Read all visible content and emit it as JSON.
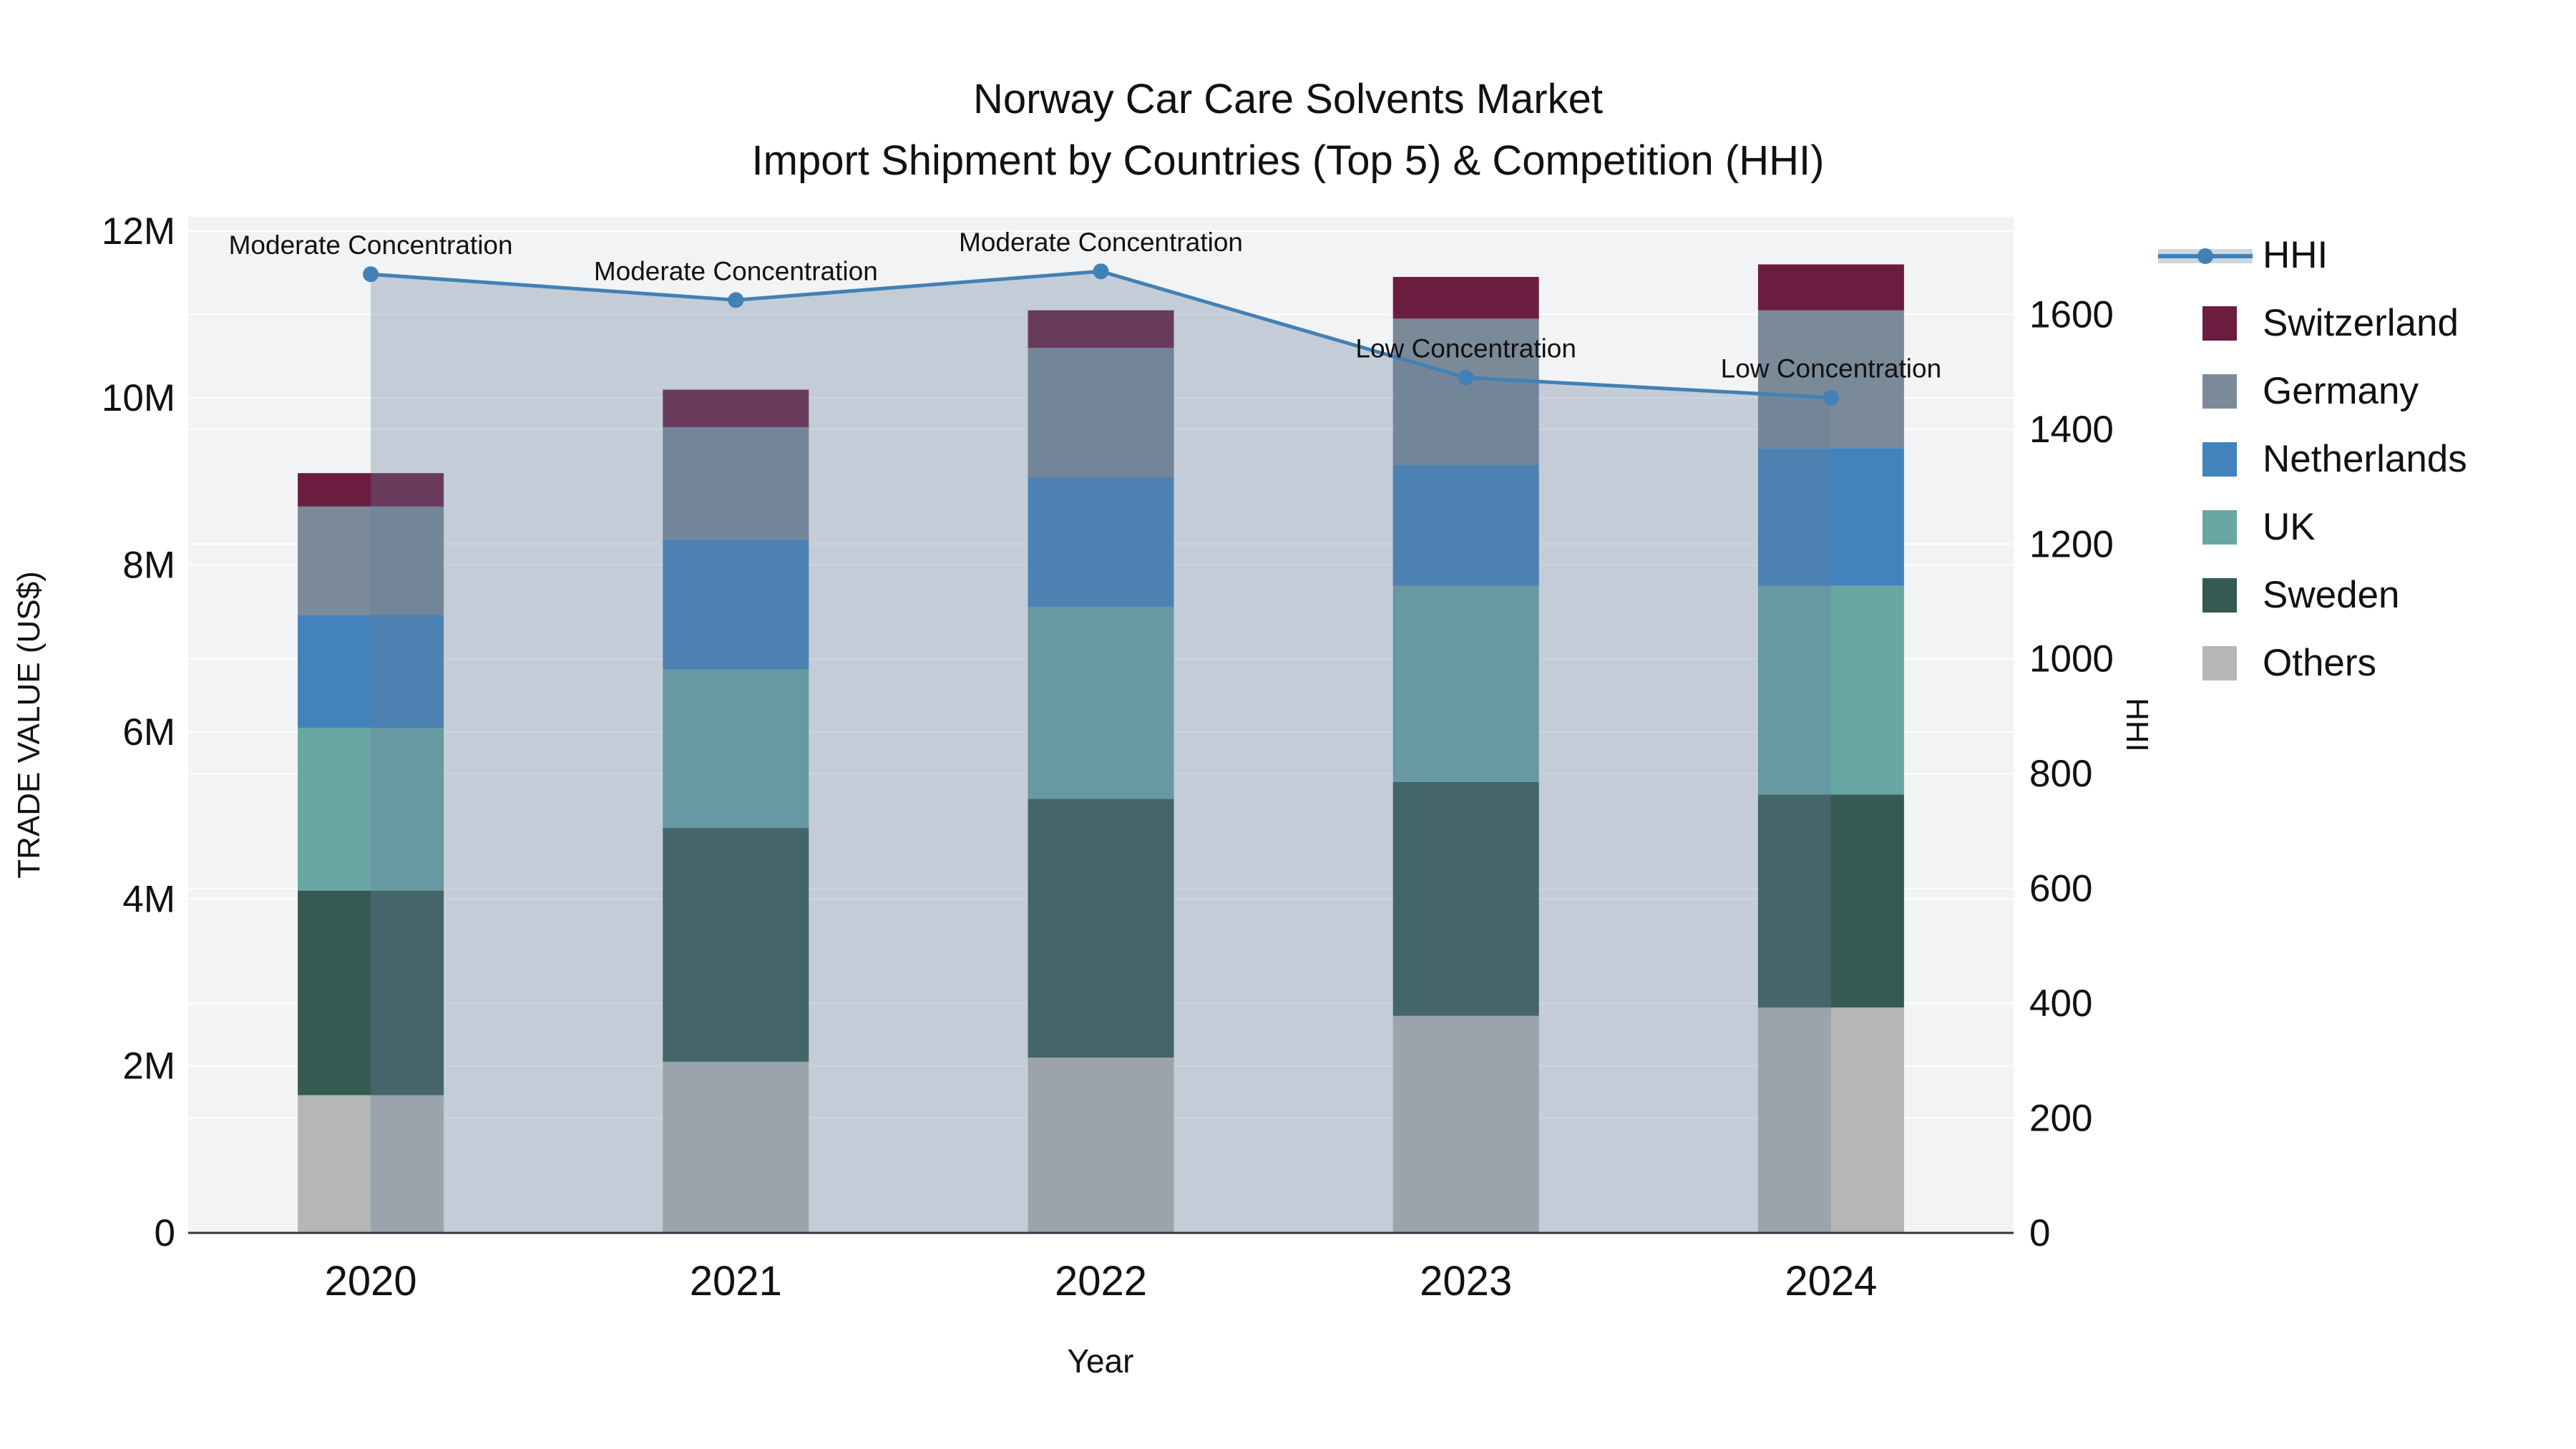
{
  "title": {
    "line1": "Norway Car Care Solvents Market",
    "line2": "Import Shipment by Countries (Top 5) & Competition (HHI)"
  },
  "chart_data": {
    "type": "combo",
    "bar_mode": "stacked",
    "unit": "M US$",
    "categories": [
      "2020",
      "2021",
      "2022",
      "2023",
      "2024"
    ],
    "series": [
      {
        "name": "Others",
        "color": "#b5b6b6",
        "values": [
          1.65,
          2.05,
          2.1,
          2.6,
          2.7
        ]
      },
      {
        "name": "Sweden",
        "color": "#355a52",
        "values": [
          2.45,
          2.8,
          3.1,
          2.8,
          2.55
        ]
      },
      {
        "name": "UK",
        "color": "#68a7a4",
        "values": [
          1.95,
          1.9,
          2.3,
          2.35,
          2.5
        ]
      },
      {
        "name": "Netherlands",
        "color": "#4283bd",
        "values": [
          1.35,
          1.55,
          1.55,
          1.45,
          1.65
        ]
      },
      {
        "name": "Germany",
        "color": "#7b8a99",
        "values": [
          1.3,
          1.35,
          1.55,
          1.75,
          1.65
        ]
      },
      {
        "name": "Switzerland",
        "color": "#6b1d40",
        "values": [
          0.4,
          0.45,
          0.45,
          0.5,
          0.55
        ]
      }
    ],
    "totals": [
      9.1,
      10.1,
      11.05,
      11.45,
      11.6
    ],
    "line_series": {
      "name": "HHI",
      "color": "#4181b5",
      "fill_color": "rgba(100,125,155,0.32)",
      "values": [
        1670,
        1625,
        1675,
        1490,
        1455
      ]
    },
    "annotations": [
      {
        "category": "2020",
        "text": "Moderate Concentration"
      },
      {
        "category": "2021",
        "text": "Moderate Concentration"
      },
      {
        "category": "2022",
        "text": "Moderate Concentration"
      },
      {
        "category": "2023",
        "text": "Low Concentration"
      },
      {
        "category": "2024",
        "text": "Low Concentration"
      }
    ],
    "left_axis": {
      "title": "TRADE VALUE (US$)",
      "tick_labels": [
        "0",
        "2M",
        "4M",
        "6M",
        "8M",
        "10M",
        "12M"
      ],
      "tick_values_m": [
        0,
        2,
        4,
        6,
        8,
        10,
        12
      ],
      "range_m": [
        0,
        12.17
      ]
    },
    "right_axis": {
      "title": "HHI",
      "tick_values": [
        0,
        200,
        400,
        600,
        800,
        1000,
        1200,
        1400,
        1600
      ],
      "range": [
        0,
        1770
      ]
    },
    "x_axis": {
      "title": "Year"
    },
    "legend_items": [
      "HHI",
      "Switzerland",
      "Germany",
      "Netherlands",
      "UK",
      "Sweden",
      "Others"
    ],
    "style": {
      "plot_bg": "#f2f3f4",
      "grid_color": "#ffffff",
      "zero_line": "#30373f",
      "hhi_band": "#ccd6e0",
      "text_color": "#111111"
    }
  }
}
